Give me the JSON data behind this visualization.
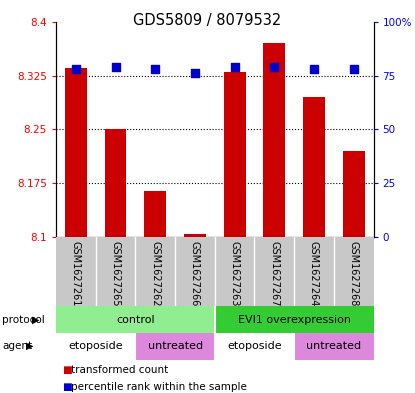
{
  "title": "GDS5809 / 8079532",
  "samples": [
    "GSM1627261",
    "GSM1627265",
    "GSM1627262",
    "GSM1627266",
    "GSM1627263",
    "GSM1627267",
    "GSM1627264",
    "GSM1627268"
  ],
  "bar_values": [
    8.335,
    8.25,
    8.165,
    8.105,
    8.33,
    8.37,
    8.295,
    8.22
  ],
  "percentile_values": [
    78,
    79,
    78,
    76,
    79,
    79,
    78,
    78
  ],
  "ylim": [
    8.1,
    8.4
  ],
  "yticks_left": [
    8.1,
    8.175,
    8.25,
    8.325,
    8.4
  ],
  "yticks_left_labels": [
    "8.1",
    "8.175",
    "8.25",
    "8.325",
    "8.4"
  ],
  "yticks_right": [
    0,
    25,
    50,
    75,
    100
  ],
  "yticks_right_labels": [
    "0",
    "25",
    "50",
    "75",
    "100%"
  ],
  "bar_color": "#cc0000",
  "percentile_color": "#0000cc",
  "protocol_groups": [
    {
      "label": "control",
      "start": 0,
      "end": 4,
      "color": "#90ee90"
    },
    {
      "label": "EVI1 overexpression",
      "start": 4,
      "end": 8,
      "color": "#33cc33"
    }
  ],
  "agent_groups": [
    {
      "label": "etoposide",
      "start": 0,
      "end": 2,
      "color": "#ffffff"
    },
    {
      "label": "untreated",
      "start": 2,
      "end": 4,
      "color": "#dd88dd"
    },
    {
      "label": "etoposide",
      "start": 4,
      "end": 6,
      "color": "#ffffff"
    },
    {
      "label": "untreated",
      "start": 6,
      "end": 8,
      "color": "#dd88dd"
    }
  ],
  "legend_items": [
    {
      "label": "  transformed count",
      "color": "#cc0000"
    },
    {
      "label": "  percentile rank within the sample",
      "color": "#0000cc"
    }
  ]
}
